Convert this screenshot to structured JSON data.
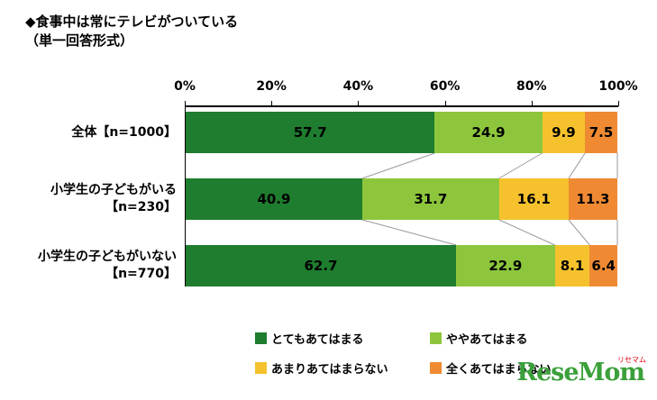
{
  "title": {
    "line1": "◆食事中は常にテレビがついている",
    "line2": "（単一回答形式）"
  },
  "chart_data": {
    "type": "bar",
    "stacked": true,
    "orientation": "horizontal",
    "title": "食事中は常にテレビがついている（単一回答形式）",
    "x_ticks": [
      "0%",
      "20%",
      "40%",
      "60%",
      "80%",
      "100%"
    ],
    "xlim": [
      0,
      100
    ],
    "grid": false,
    "legend_position": "bottom",
    "categories": [
      "全体【n=1000】",
      "小学生の子どもがいる【n=230】",
      "小学生の子どもがいない【n=770】"
    ],
    "category_lines": [
      [
        "全体【n=1000】"
      ],
      [
        "小学生の子どもがいる",
        "【n=230】"
      ],
      [
        "小学生の子どもがいない",
        "【n=770】"
      ]
    ],
    "series": [
      {
        "name": "とてもあてはまる",
        "color": "#1e7d2e",
        "values": [
          57.7,
          40.9,
          62.7
        ]
      },
      {
        "name": "ややあてはまる",
        "color": "#8dc63c",
        "values": [
          24.9,
          31.7,
          22.9
        ]
      },
      {
        "name": "あまりあてはまらない",
        "color": "#f5c22d",
        "values": [
          9.9,
          16.1,
          8.1
        ]
      },
      {
        "name": "全くあてはまらない",
        "color": "#ef8a33",
        "values": [
          7.5,
          11.3,
          6.4
        ]
      }
    ],
    "connector_line_color": "#999999"
  },
  "logo": {
    "text": "ReseMom",
    "ruby": "リセマム"
  }
}
